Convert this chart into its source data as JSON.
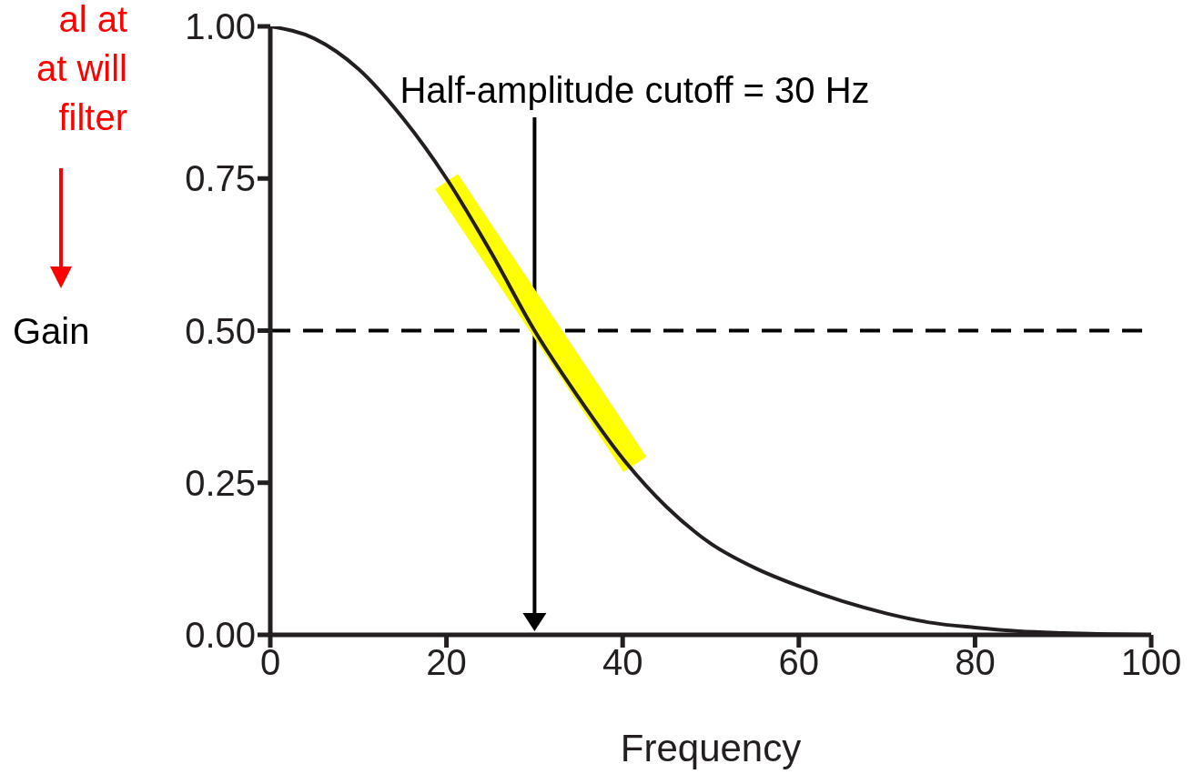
{
  "chart_data": {
    "type": "line",
    "xlabel": "Frequency",
    "ylabel": "Gain",
    "xlim": [
      0,
      100
    ],
    "ylim": [
      0,
      1
    ],
    "xticks": [
      0,
      20,
      40,
      60,
      80,
      100
    ],
    "yticks": [
      {
        "value": 0,
        "label": "0.00"
      },
      {
        "value": 0.25,
        "label": "0.25"
      },
      {
        "value": 0.5,
        "label": "0.50"
      },
      {
        "value": 0.75,
        "label": "0.75"
      },
      {
        "value": 1,
        "label": "1.00"
      }
    ],
    "marker": "none",
    "line_style": "solid",
    "series": [
      {
        "color": "#ffff00",
        "x": [
          20,
          41.4
        ],
        "values": [
          0.745,
          0.28
        ]
      },
      {
        "color": "#231f20",
        "x": [
          0,
          5,
          10,
          15,
          20,
          25,
          30,
          35,
          40,
          45,
          50,
          55,
          60,
          65,
          70,
          75,
          80,
          85,
          90,
          95,
          100
        ],
        "values": [
          1.0,
          0.98,
          0.93,
          0.85,
          0.75,
          0.63,
          0.5,
          0.39,
          0.29,
          0.21,
          0.15,
          0.11,
          0.08,
          0.055,
          0.035,
          0.02,
          0.012,
          0.006,
          0.003,
          0.001,
          0
        ]
      }
    ],
    "ref_lines": [
      {
        "axis": "x",
        "value": 30,
        "label": "Half-amplitude cutoff = 30 Hz",
        "color": "#000000",
        "line_style": "solid"
      },
      {
        "axis": "y",
        "value": 0.5,
        "color": "#000000",
        "line_style": "dashed"
      }
    ],
    "annotations": [
      "al at\nat will\nfilter"
    ]
  }
}
